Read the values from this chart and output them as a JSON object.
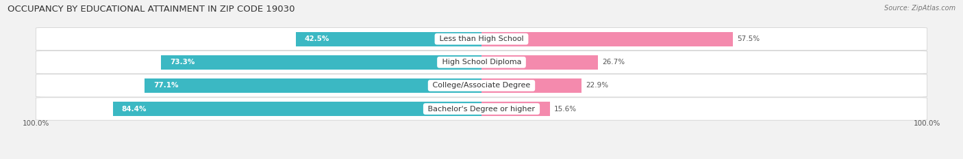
{
  "title": "OCCUPANCY BY EDUCATIONAL ATTAINMENT IN ZIP CODE 19030",
  "source": "Source: ZipAtlas.com",
  "categories": [
    "Less than High School",
    "High School Diploma",
    "College/Associate Degree",
    "Bachelor's Degree or higher"
  ],
  "owner_pct": [
    42.5,
    73.3,
    77.1,
    84.4
  ],
  "renter_pct": [
    57.5,
    26.7,
    22.9,
    15.6
  ],
  "owner_color": "#3bb8c3",
  "renter_color": "#f48aad",
  "bg_color": "#f2f2f2",
  "row_bg_color": "#ffffff",
  "title_fontsize": 9.5,
  "label_fontsize": 8.0,
  "pct_fontsize": 7.5,
  "legend_fontsize": 8.0,
  "bar_height": 0.72,
  "x_left_label": "100.0%",
  "x_right_label": "100.0%"
}
